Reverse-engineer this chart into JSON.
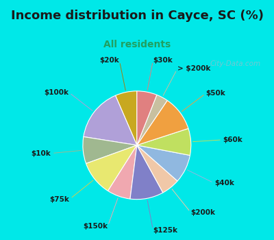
{
  "title": "Income distribution in Cayce, SC (%)",
  "subtitle": "All residents",
  "watermark": "City-Data.com",
  "labels": [
    "$20k",
    "$100k",
    "$10k",
    "$75k",
    "$150k",
    "$125k",
    "$200k",
    "$40k",
    "$60k",
    "$50k",
    "> $200k",
    "$30k"
  ],
  "sizes": [
    6.5,
    16.0,
    8.0,
    10.5,
    7.0,
    10.0,
    5.5,
    8.5,
    8.0,
    10.5,
    3.5,
    6.0
  ],
  "colors": [
    "#c8a820",
    "#b0a0d8",
    "#a0b890",
    "#e8e870",
    "#f0a8b0",
    "#8080c8",
    "#f0c8a8",
    "#90b8e0",
    "#c0e060",
    "#f0a040",
    "#c8c0a0",
    "#e08080"
  ],
  "background_cyan": "#00e8e8",
  "background_chart": "#e8f5ee",
  "title_color": "#1a1a1a",
  "subtitle_color": "#20a060",
  "startangle": 90,
  "label_fontsize": 7.5,
  "title_fontsize": 13,
  "subtitle_fontsize": 10,
  "label_colors": [
    "#a08010",
    "#b0a0d8",
    "#a0b890",
    "#d0d050",
    "#f0a8b0",
    "#8080c8",
    "#f0c8a8",
    "#90b8e0",
    "#c0e060",
    "#f0a040",
    "#c8c0a0",
    "#e08080"
  ]
}
